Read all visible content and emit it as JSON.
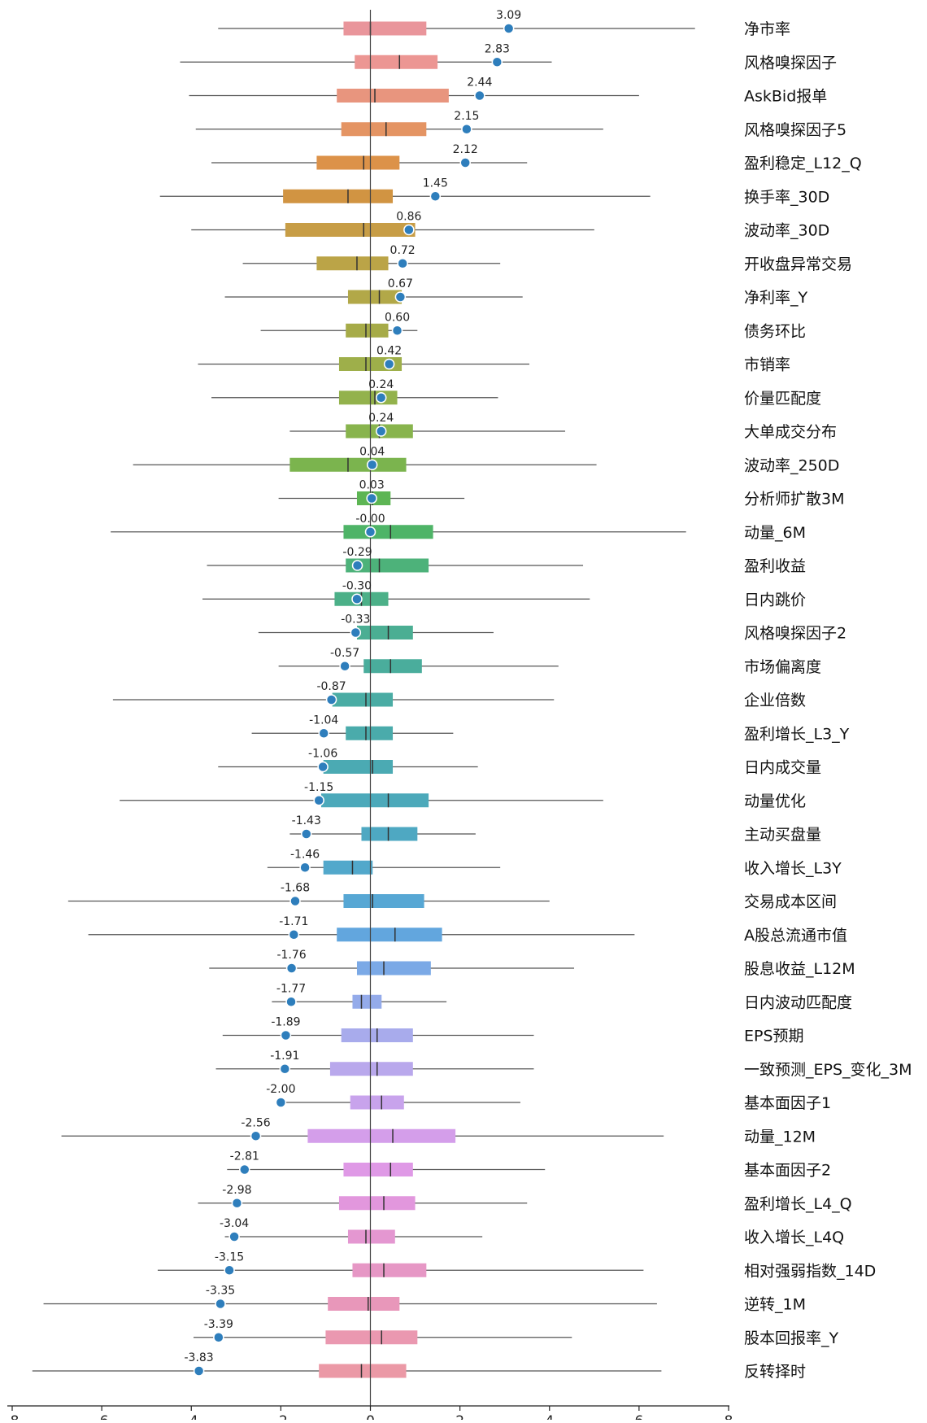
{
  "chart_data": {
    "type": "box",
    "orientation": "horizontal",
    "xlim": [
      -8,
      8
    ],
    "x_ticks": [
      -8,
      -6,
      -4,
      -2,
      0,
      2,
      4,
      6,
      8
    ],
    "x_tick_labels": [
      "-8",
      "-6",
      "-4",
      "-2",
      "0",
      "2",
      "4",
      "6",
      "8"
    ],
    "title": "",
    "xlabel": "",
    "ylabel": "",
    "reference_line_x": 0,
    "factors": [
      {
        "name": "净市率",
        "value_label": "3.09",
        "value": 3.09,
        "whisker_low": -3.4,
        "q1": -0.6,
        "median": 0.0,
        "q3": 1.25,
        "whisker_high": 7.25,
        "color": "#e9959b"
      },
      {
        "name": "风格嗅探因子",
        "value_label": "2.83",
        "value": 2.83,
        "whisker_low": -4.25,
        "q1": -0.35,
        "median": 0.65,
        "q3": 1.5,
        "whisker_high": 4.05,
        "color": "#ec9693"
      },
      {
        "name": "AskBid报单",
        "value_label": "2.44",
        "value": 2.44,
        "whisker_low": -4.05,
        "q1": -0.75,
        "median": 0.1,
        "q3": 1.75,
        "whisker_high": 6.0,
        "color": "#e8957e"
      },
      {
        "name": "风格嗅探因子5",
        "value_label": "2.15",
        "value": 2.15,
        "whisker_low": -3.9,
        "q1": -0.65,
        "median": 0.35,
        "q3": 1.25,
        "whisker_high": 5.2,
        "color": "#e49463"
      },
      {
        "name": "盈利稳定_L12_Q",
        "value_label": "2.12",
        "value": 2.12,
        "whisker_low": -3.55,
        "q1": -1.2,
        "median": -0.15,
        "q3": 0.65,
        "whisker_high": 3.5,
        "color": "#dc9249"
      },
      {
        "name": "换手率_30D",
        "value_label": "1.45",
        "value": 1.45,
        "whisker_low": -4.7,
        "q1": -1.95,
        "median": -0.5,
        "q3": 0.5,
        "whisker_high": 6.25,
        "color": "#d19442"
      },
      {
        "name": "波动率_30D",
        "value_label": "0.86",
        "value": 0.86,
        "whisker_low": -4.0,
        "q1": -1.9,
        "median": -0.15,
        "q3": 1.0,
        "whisker_high": 5.0,
        "color": "#c79d46"
      },
      {
        "name": "开收盘异常交易",
        "value_label": "0.72",
        "value": 0.72,
        "whisker_low": -2.85,
        "q1": -1.2,
        "median": -0.3,
        "q3": 0.4,
        "whisker_high": 2.9,
        "color": "#bba447"
      },
      {
        "name": "净利率_Y",
        "value_label": "0.67",
        "value": 0.67,
        "whisker_low": -3.25,
        "q1": -0.5,
        "median": 0.2,
        "q3": 0.7,
        "whisker_high": 3.4,
        "color": "#b2a848"
      },
      {
        "name": "债务环比",
        "value_label": "0.60",
        "value": 0.6,
        "whisker_low": -2.45,
        "q1": -0.55,
        "median": -0.1,
        "q3": 0.4,
        "whisker_high": 1.05,
        "color": "#a6ab48"
      },
      {
        "name": "市销率",
        "value_label": "0.42",
        "value": 0.42,
        "whisker_low": -3.85,
        "q1": -0.7,
        "median": -0.1,
        "q3": 0.7,
        "whisker_high": 3.55,
        "color": "#9eaf4a"
      },
      {
        "name": "价量匹配度",
        "value_label": "0.24",
        "value": 0.24,
        "whisker_low": -3.55,
        "q1": -0.7,
        "median": 0.1,
        "q3": 0.6,
        "whisker_high": 2.85,
        "color": "#93b24c"
      },
      {
        "name": "大单成交分布",
        "value_label": "0.24",
        "value": 0.24,
        "whisker_low": -1.8,
        "q1": -0.55,
        "median": 0.2,
        "q3": 0.95,
        "whisker_high": 4.35,
        "color": "#88b44d"
      },
      {
        "name": "波动率_250D",
        "value_label": "0.04",
        "value": 0.04,
        "whisker_low": -5.3,
        "q1": -1.8,
        "median": -0.5,
        "q3": 0.8,
        "whisker_high": 5.05,
        "color": "#7bb44e"
      },
      {
        "name": "分析师扩散3M",
        "value_label": "0.03",
        "value": 0.03,
        "whisker_low": -2.05,
        "q1": -0.3,
        "median": 0.05,
        "q3": 0.45,
        "whisker_high": 2.1,
        "color": "#5db554"
      },
      {
        "name": "动量_6M",
        "value_label": "-0.00",
        "value": 0.0,
        "whisker_low": -5.8,
        "q1": -0.6,
        "median": 0.45,
        "q3": 1.4,
        "whisker_high": 7.05,
        "color": "#4eb467"
      },
      {
        "name": "盈利收益",
        "value_label": "-0.29",
        "value": -0.29,
        "whisker_low": -3.65,
        "q1": -0.55,
        "median": 0.2,
        "q3": 1.3,
        "whisker_high": 4.75,
        "color": "#4db27a"
      },
      {
        "name": "日内跳价",
        "value_label": "-0.30",
        "value": -0.3,
        "whisker_low": -3.75,
        "q1": -0.8,
        "median": -0.2,
        "q3": 0.4,
        "whisker_high": 4.9,
        "color": "#4cb088"
      },
      {
        "name": "风格嗅探因子2",
        "value_label": "-0.33",
        "value": -0.33,
        "whisker_low": -2.5,
        "q1": -0.3,
        "median": 0.4,
        "q3": 0.95,
        "whisker_high": 2.75,
        "color": "#4bae93"
      },
      {
        "name": "市场偏离度",
        "value_label": "-0.57",
        "value": -0.57,
        "whisker_low": -2.05,
        "q1": -0.15,
        "median": 0.45,
        "q3": 1.15,
        "whisker_high": 4.2,
        "color": "#4aad9c"
      },
      {
        "name": "企业倍数",
        "value_label": "-0.87",
        "value": -0.87,
        "whisker_low": -5.75,
        "q1": -0.85,
        "median": -0.1,
        "q3": 0.5,
        "whisker_high": 4.1,
        "color": "#4aaca4"
      },
      {
        "name": "盈利增长_L3_Y",
        "value_label": "-1.04",
        "value": -1.04,
        "whisker_low": -2.65,
        "q1": -0.55,
        "median": -0.1,
        "q3": 0.5,
        "whisker_high": 1.85,
        "color": "#4aabab"
      },
      {
        "name": "日内成交量",
        "value_label": "-1.06",
        "value": -1.06,
        "whisker_low": -3.4,
        "q1": -1.05,
        "median": 0.05,
        "q3": 0.5,
        "whisker_high": 2.4,
        "color": "#4baab3"
      },
      {
        "name": "动量优化",
        "value_label": "-1.15",
        "value": -1.15,
        "whisker_low": -5.6,
        "q1": -1.1,
        "median": 0.4,
        "q3": 1.3,
        "whisker_high": 5.2,
        "color": "#4ca9ba"
      },
      {
        "name": "主动买盘量",
        "value_label": "-1.43",
        "value": -1.43,
        "whisker_low": -1.8,
        "q1": -0.2,
        "median": 0.4,
        "q3": 1.05,
        "whisker_high": 2.35,
        "color": "#4ea8c2"
      },
      {
        "name": "收入增长_L3Y",
        "value_label": "-1.46",
        "value": -1.46,
        "whisker_low": -2.3,
        "q1": -1.05,
        "median": -0.4,
        "q3": 0.05,
        "whisker_high": 2.9,
        "color": "#52a8cb"
      },
      {
        "name": "交易成本区间",
        "value_label": "-1.68",
        "value": -1.68,
        "whisker_low": -6.75,
        "q1": -0.6,
        "median": 0.05,
        "q3": 1.2,
        "whisker_high": 4.0,
        "color": "#57a7d4"
      },
      {
        "name": "A股总流通市值",
        "value_label": "-1.71",
        "value": -1.71,
        "whisker_low": -6.3,
        "q1": -0.75,
        "median": 0.55,
        "q3": 1.6,
        "whisker_high": 5.9,
        "color": "#62a6de"
      },
      {
        "name": "股息收益_L12M",
        "value_label": "-1.76",
        "value": -1.76,
        "whisker_low": -3.6,
        "q1": -0.3,
        "median": 0.3,
        "q3": 1.35,
        "whisker_high": 4.55,
        "color": "#7ba9e6"
      },
      {
        "name": "日内波动匹配度",
        "value_label": "-1.77",
        "value": -1.77,
        "whisker_low": -2.2,
        "q1": -0.4,
        "median": -0.2,
        "q3": 0.25,
        "whisker_high": 1.7,
        "color": "#94abea"
      },
      {
        "name": "EPS预期",
        "value_label": "-1.89",
        "value": -1.89,
        "whisker_low": -3.3,
        "q1": -0.65,
        "median": 0.15,
        "q3": 0.95,
        "whisker_high": 3.65,
        "color": "#a8abec"
      },
      {
        "name": "一致预测_EPS_变化_3M",
        "value_label": "-1.91",
        "value": -1.91,
        "whisker_low": -3.45,
        "q1": -0.9,
        "median": 0.15,
        "q3": 0.95,
        "whisker_high": 3.65,
        "color": "#b9a8ec"
      },
      {
        "name": "基本面因子1",
        "value_label": "-2.00",
        "value": -2.0,
        "whisker_low": -2.0,
        "q1": -0.45,
        "median": 0.25,
        "q3": 0.75,
        "whisker_high": 3.35,
        "color": "#c8a3ec"
      },
      {
        "name": "动量_12M",
        "value_label": "-2.56",
        "value": -2.56,
        "whisker_low": -6.9,
        "q1": -1.4,
        "median": 0.5,
        "q3": 1.9,
        "whisker_high": 6.55,
        "color": "#d49eea"
      },
      {
        "name": "基本面因子2",
        "value_label": "-2.81",
        "value": -2.81,
        "whisker_low": -3.2,
        "q1": -0.6,
        "median": 0.45,
        "q3": 0.95,
        "whisker_high": 3.9,
        "color": "#df99e6"
      },
      {
        "name": "盈利增长_L4_Q",
        "value_label": "-2.98",
        "value": -2.98,
        "whisker_low": -3.85,
        "q1": -0.7,
        "median": 0.3,
        "q3": 1.0,
        "whisker_high": 3.5,
        "color": "#e297dd"
      },
      {
        "name": "收入增长_L4Q",
        "value_label": "-3.04",
        "value": -3.04,
        "whisker_low": -3.25,
        "q1": -0.5,
        "median": -0.1,
        "q3": 0.55,
        "whisker_high": 2.5,
        "color": "#e497d1"
      },
      {
        "name": "相对强弱指数_14D",
        "value_label": "-3.15",
        "value": -3.15,
        "whisker_low": -4.75,
        "q1": -0.4,
        "median": 0.3,
        "q3": 1.25,
        "whisker_high": 6.1,
        "color": "#e697c5"
      },
      {
        "name": "逆转_1M",
        "value_label": "-3.35",
        "value": -3.35,
        "whisker_low": -7.3,
        "q1": -0.95,
        "median": -0.05,
        "q3": 0.65,
        "whisker_high": 6.4,
        "color": "#e897ba"
      },
      {
        "name": "股本回报率_Y",
        "value_label": "-3.39",
        "value": -3.39,
        "whisker_low": -3.95,
        "q1": -1.0,
        "median": 0.25,
        "q3": 1.05,
        "whisker_high": 4.5,
        "color": "#ea98b0"
      },
      {
        "name": "反转择时",
        "value_label": "-3.83",
        "value": -3.83,
        "whisker_low": -7.55,
        "q1": -1.15,
        "median": -0.2,
        "q3": 0.8,
        "whisker_high": 6.5,
        "color": "#eb99a6"
      }
    ],
    "marker_color": "#2e7ebc",
    "whisker_color": "#555555"
  }
}
